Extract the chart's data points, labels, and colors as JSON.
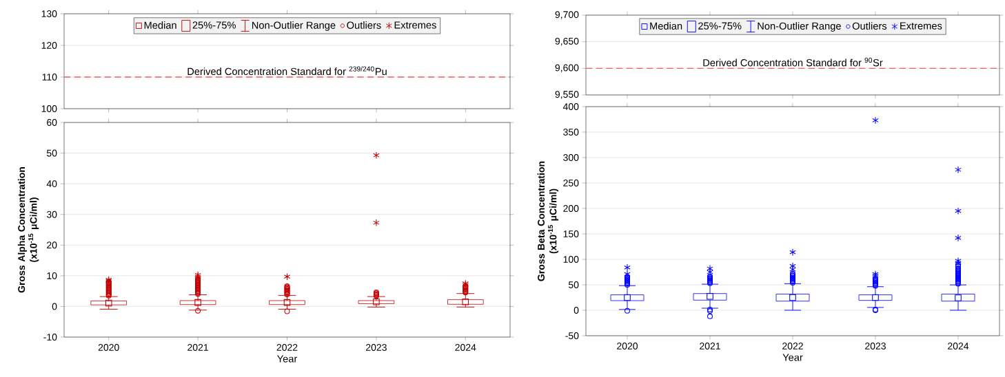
{
  "chart_data": [
    {
      "type": "box",
      "categories": [
        "2020",
        "2021",
        "2022",
        "2023",
        "2024"
      ],
      "ylim": [
        100,
        130
      ],
      "yticks": [
        100,
        110,
        120,
        130
      ],
      "tick_labels": "y",
      "grid": "y",
      "ref_lines": [
        {
          "axis": "y",
          "value": 110,
          "label": "Derived Concentration Standard for $^{239/240}$Pu",
          "color": "#f06060",
          "line_style": "dashed"
        }
      ],
      "annotations": [
        "Median",
        "25%-75%",
        "Non-Outlier Range",
        "Outliers",
        "Extremes"
      ]
    },
    {
      "type": "box",
      "categories": [
        "2020",
        "2021",
        "2022",
        "2023",
        "2024"
      ],
      "ylim": [
        -10,
        60
      ],
      "yticks": [
        -10,
        0,
        10,
        20,
        30,
        40,
        50,
        60
      ],
      "grid": "y",
      "xlabel": "Year",
      "ylabel": "Gross Alpha Concentration (x10$^{-15}$ μCi/ml)",
      "series": [
        {
          "color": "#c00000",
          "boxes": [
            {
              "low": -0.9,
              "q1": 0.5,
              "median": 1.1,
              "q3": 1.8,
              "high": 3.2,
              "outliers": [
                3.5,
                3.8,
                4.1,
                4.4,
                4.7,
                5.0,
                5.3,
                5.6,
                5.9,
                6.2,
                6.5,
                6.8,
                7.1,
                7.4,
                7.7,
                8.0
              ]
            },
            {
              "low": -1.2,
              "q1": 0.6,
              "median": 1.3,
              "q3": 1.9,
              "high": 3.8,
              "outliers": [
                -1.4,
                4.1,
                4.4,
                4.7,
                5.0,
                5.3,
                5.6,
                5.9,
                6.2,
                6.5,
                6.8,
                7.1,
                7.4,
                7.7,
                8.0,
                8.3,
                8.6,
                9.0
              ]
            },
            {
              "low": -0.9,
              "q1": 0.6,
              "median": 1.3,
              "q3": 1.9,
              "high": 3.6,
              "outliers": [
                -1.6,
                3.9,
                4.2,
                4.5,
                4.8,
                5.1,
                5.4,
                5.7,
                6.0,
                6.3,
                6.6
              ]
            },
            {
              "low": -0.2,
              "q1": 0.9,
              "median": 1.5,
              "q3": 1.9,
              "high": 3.2,
              "outliers": [
                3.4,
                3.7,
                4.0,
                4.3,
                4.6
              ]
            },
            {
              "low": -0.2,
              "q1": 0.7,
              "median": 1.5,
              "q3": 2.2,
              "high": 4.2,
              "outliers": [
                4.5,
                4.8,
                5.1,
                5.4,
                5.7,
                6.0,
                6.3,
                6.6
              ]
            }
          ]
        },
        {
          "type": "scatter",
          "color": "#c00000",
          "marker": "cross",
          "values": [
            8.3,
            9.3,
            9.7,
            27.3,
            7.1
          ]
        },
        {
          "type": "scatter",
          "color": "#c00000",
          "marker": "cross",
          "values": [
            8.7,
            9.8,
            null,
            49.3,
            7.5
          ]
        },
        {
          "type": "scatter",
          "color": "#c00000",
          "marker": "cross",
          "values": [
            null,
            10.3,
            null,
            null,
            null
          ]
        }
      ]
    },
    {
      "type": "box",
      "categories": [
        "2020",
        "2021",
        "2022",
        "2023",
        "2024"
      ],
      "ylim": [
        9550,
        9700
      ],
      "yticks": [
        {
          "value": 9550,
          "label": "9,550"
        },
        {
          "value": 9600,
          "label": "9,600"
        },
        {
          "value": 9650,
          "label": "9,650"
        },
        {
          "value": 9700,
          "label": "9,700"
        }
      ],
      "tick_labels": "y",
      "grid": "y",
      "ref_lines": [
        {
          "axis": "y",
          "value": 9600,
          "label": "Derived Concentration Standard for $^{90}$Sr",
          "color": "#f06060",
          "line_style": "dashed"
        }
      ],
      "annotations": [
        "Median",
        "25%-75%",
        "Non-Outlier Range",
        "Outliers",
        "Extremes"
      ]
    },
    {
      "type": "box",
      "categories": [
        "2020",
        "2021",
        "2022",
        "2023",
        "2024"
      ],
      "ylim": [
        -50,
        400
      ],
      "yticks": [
        -50,
        0,
        50,
        100,
        150,
        200,
        250,
        300,
        350,
        400
      ],
      "grid": "y",
      "xlabel": "Year",
      "ylabel": "Gross Beta Concentration (x10$^{-15}$ μCi/ml)",
      "series": [
        {
          "color": "#0000ff",
          "boxes": [
            {
              "low": 1.5,
              "q1": 18.9,
              "median": 24.9,
              "q3": 30.3,
              "high": 48.3,
              "outliers": [
                -1,
                50,
                52,
                54,
                56,
                58,
                60,
                62,
                64,
                66
              ]
            },
            {
              "low": 4,
              "q1": 19.9,
              "median": 27.4,
              "q3": 32.8,
              "high": 51.2,
              "outliers": [
                1.5,
                -1.5,
                -12,
                53,
                55,
                57,
                59,
                61,
                63,
                65,
                67
              ]
            },
            {
              "low": 0,
              "q1": 17.9,
              "median": 24.9,
              "q3": 31.8,
              "high": 52.2,
              "outliers": [
                54,
                56,
                58,
                60,
                62,
                64,
                66,
                68,
                70,
                72
              ]
            },
            {
              "low": 5.5,
              "q1": 19.4,
              "median": 24.9,
              "q3": 30.3,
              "high": 46.3,
              "outliers": [
                1.5,
                0,
                48,
                50,
                52,
                54,
                56,
                58,
                60,
                62
              ]
            },
            {
              "low": 0,
              "q1": 17.9,
              "median": 24.4,
              "q3": 31.8,
              "high": 49.8,
              "outliers": [
                52,
                54,
                56,
                58,
                60,
                62,
                64,
                66,
                68,
                70,
                72,
                74,
                76,
                78,
                80,
                82,
                86,
                90
              ]
            }
          ]
        },
        {
          "type": "scatter",
          "color": "#0000ff",
          "marker": "cross",
          "values": [
            71,
            75,
            80,
            68,
            93
          ]
        },
        {
          "type": "scatter",
          "color": "#0000ff",
          "marker": "cross",
          "values": [
            84,
            82,
            87,
            71,
            97
          ]
        },
        {
          "type": "scatter",
          "color": "#0000ff",
          "marker": "cross",
          "values": [
            null,
            null,
            114,
            373,
            142
          ]
        },
        {
          "type": "scatter",
          "color": "#0000ff",
          "marker": "cross",
          "values": [
            null,
            null,
            null,
            null,
            195
          ]
        },
        {
          "type": "scatter",
          "color": "#0000ff",
          "marker": "cross",
          "values": [
            null,
            null,
            null,
            null,
            276
          ]
        }
      ]
    }
  ]
}
